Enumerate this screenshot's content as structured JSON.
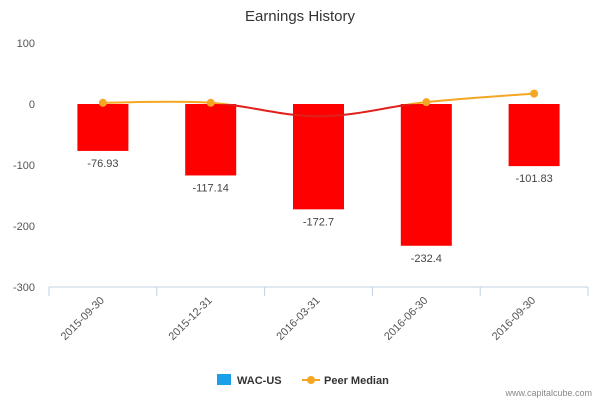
{
  "chart_data": {
    "type": "bar",
    "title": "Earnings History",
    "categories": [
      "2015-09-30",
      "2015-12-31",
      "2016-03-31",
      "2016-06-30",
      "2016-09-30"
    ],
    "series": [
      {
        "name": "WAC-US",
        "type": "bar",
        "values": [
          -76.93,
          -117.14,
          -172.7,
          -232.4,
          -101.83
        ]
      },
      {
        "name": "Peer Median",
        "type": "line",
        "values": [
          2,
          2,
          -20,
          3,
          17
        ]
      }
    ],
    "data_labels": [
      "-76.93",
      "-117.14",
      "-172.7",
      "-232.4",
      "-101.83"
    ],
    "ylim": [
      -300,
      100
    ],
    "yticks": [
      100,
      0,
      -100,
      -200,
      -300
    ],
    "ytick_labels": [
      "100",
      "0",
      "-100",
      "-200",
      "-300"
    ],
    "xlabel": "",
    "ylabel": "",
    "legend": {
      "position": "bottom-center",
      "entries": [
        "WAC-US",
        "Peer Median"
      ]
    },
    "colors": {
      "bar": "#ff0000",
      "legend_bar": "#1aa0e8",
      "peer_line_positive": "#f5a623",
      "peer_line_negative": "#e0201a",
      "axis": "#c0d0e0"
    }
  },
  "credit": "www.capitalcube.com"
}
